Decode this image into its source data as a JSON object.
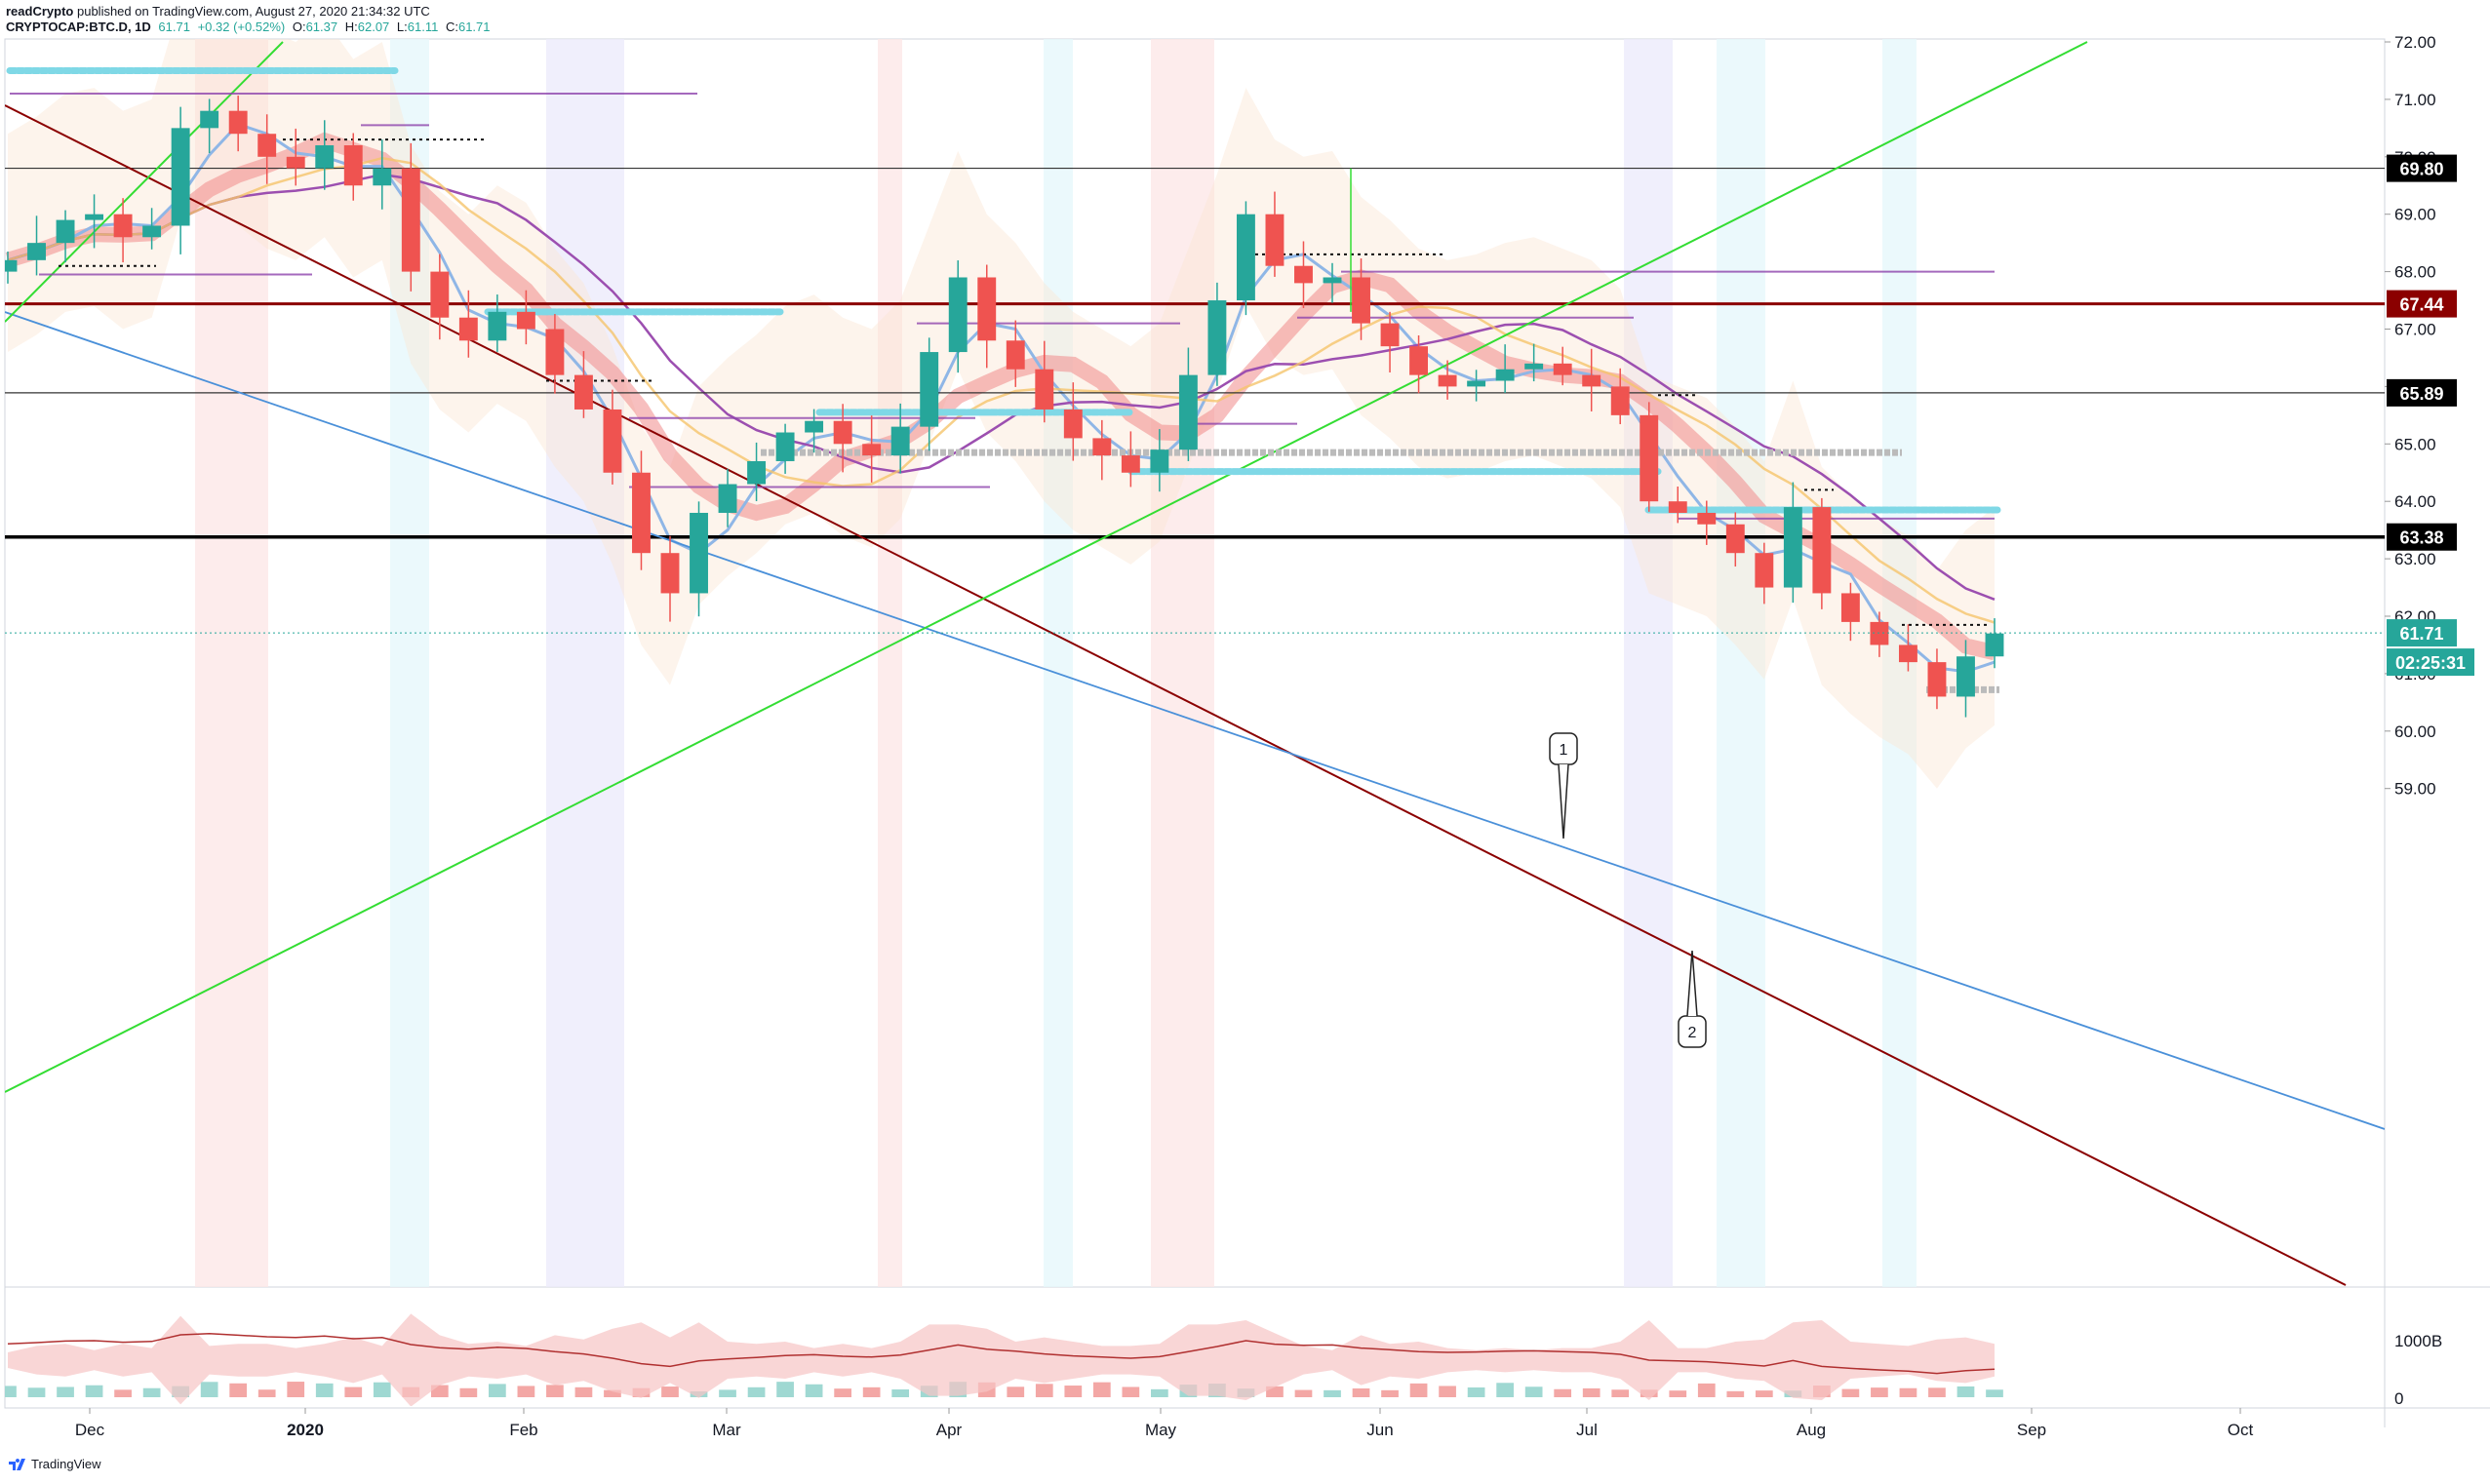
{
  "header": {
    "publisher": "readCrypto",
    "published_text": "published on TradingView.com, August 27, 2020 21:34:32 UTC",
    "symbol": "CRYPTOCAP:BTC.D, 1D",
    "last": "61.71",
    "change": "+0.32 (+0.52%)",
    "o_label": "O:",
    "o": "61.37",
    "h_label": "H:",
    "h": "62.07",
    "l_label": "L:",
    "l": "61.11",
    "c_label": "C:",
    "c": "61.71"
  },
  "footer": {
    "brand": "TradingView"
  },
  "colors": {
    "up": "#26a69a",
    "down": "#ef5350",
    "dark_red": "#8b0000",
    "green_line": "#33dd33",
    "blue_line": "#4a90d9",
    "purple": "#8e44ad",
    "cyan": "#7fd8e6",
    "tag_red": "#8b0000",
    "tag_black": "#000000",
    "tag_teal": "#26a69a"
  },
  "chart_data": {
    "type": "candlestick",
    "title": "",
    "y_range": [
      59.0,
      72.2
    ],
    "y_ticks": [
      "72.00",
      "71.00",
      "70.00",
      "69.00",
      "68.00",
      "67.00",
      "66.00",
      "65.00",
      "64.00",
      "63.00",
      "62.00",
      "61.00",
      "60.00",
      "59.00"
    ],
    "x_labels": [
      "Dec",
      "2020",
      "Feb",
      "Mar",
      "Apr",
      "May",
      "Jun",
      "Jul",
      "Aug",
      "Sep",
      "Oct"
    ],
    "series": [
      {
        "name": "BTC.D",
        "close": [
          68.2,
          68.5,
          68.9,
          69.0,
          68.6,
          68.8,
          70.5,
          70.8,
          70.4,
          70.0,
          69.8,
          70.2,
          69.5,
          69.8,
          68.0,
          67.2,
          66.8,
          67.3,
          67.0,
          66.2,
          65.6,
          64.5,
          63.1,
          62.4,
          63.8,
          64.3,
          64.7,
          65.2,
          65.4,
          65.0,
          64.8,
          65.3,
          66.6,
          67.9,
          66.8,
          66.3,
          65.6,
          65.1,
          64.8,
          64.5,
          64.9,
          66.2,
          67.5,
          69.0,
          68.1,
          67.8,
          67.9,
          67.1,
          66.7,
          66.2,
          66.0,
          66.1,
          66.3,
          66.4,
          66.2,
          66.0,
          65.5,
          64.0,
          63.8,
          63.6,
          63.1,
          62.5,
          63.9,
          62.4,
          61.9,
          61.5,
          61.2,
          60.6,
          61.3,
          61.7
        ]
      }
    ],
    "horizontal_levels": [
      {
        "label": "69.80",
        "value": 69.8
      },
      {
        "label": "67.44",
        "value": 67.44
      },
      {
        "label": "65.89",
        "value": 65.89
      },
      {
        "label": "63.38",
        "value": 63.38
      }
    ],
    "last_price_label": "61.71",
    "countdown_label": "02:25:31",
    "annotations": [
      "1",
      "2"
    ],
    "volume_axis": [
      "1000B",
      "0"
    ]
  }
}
